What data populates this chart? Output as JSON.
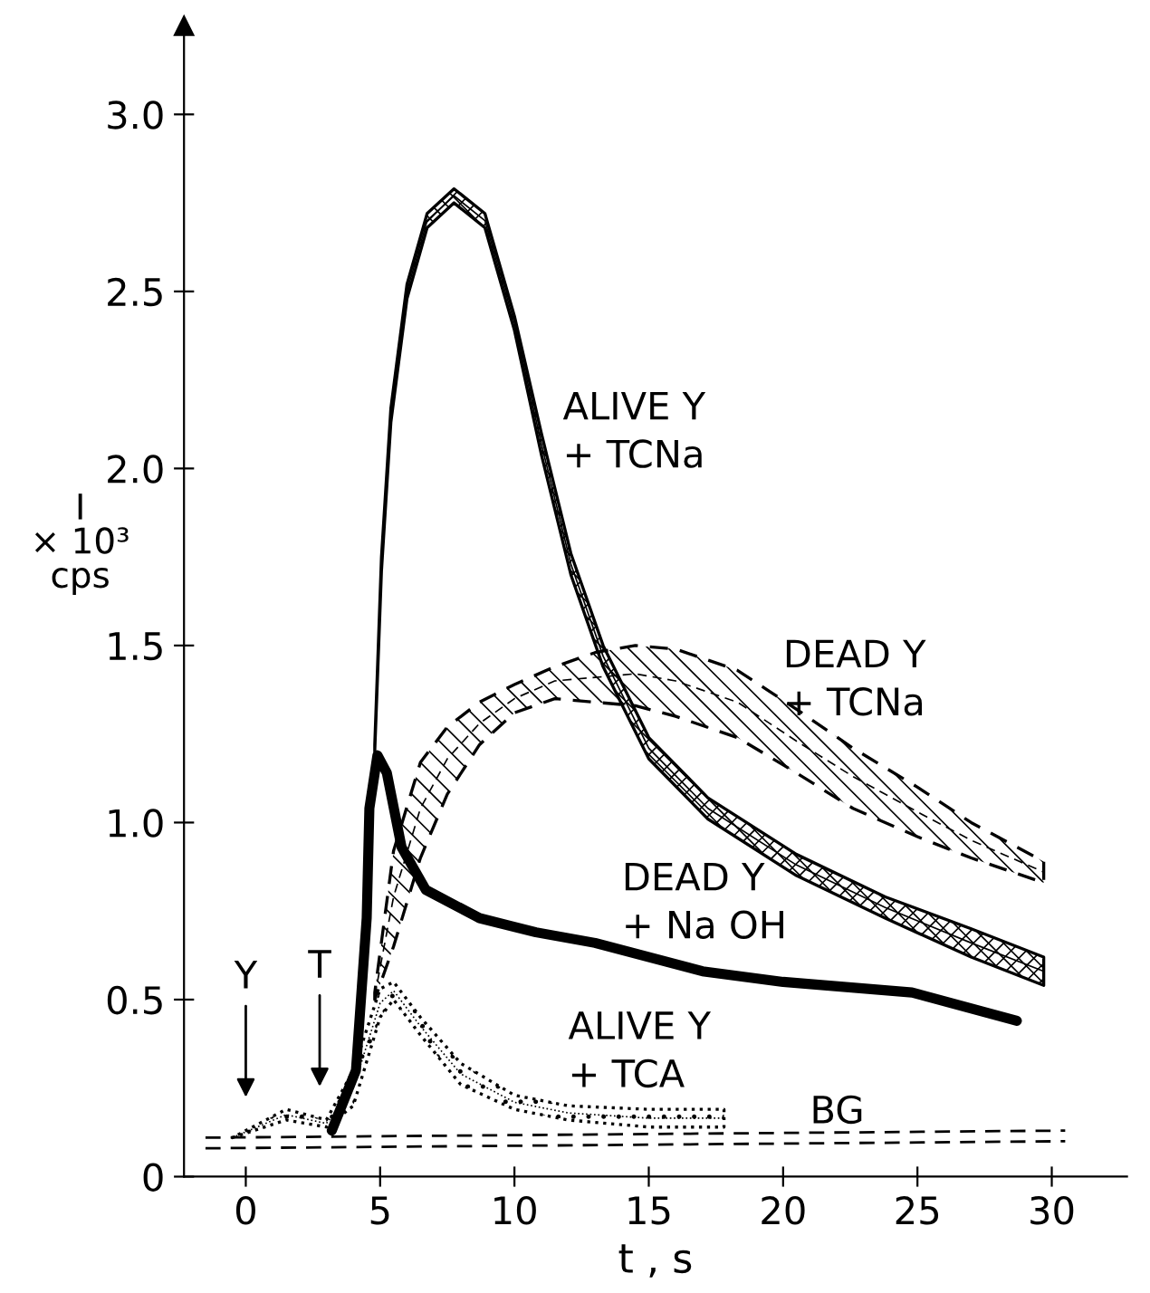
{
  "chart_data": {
    "type": "line",
    "xlabel": "t , s",
    "ylabel": "I\n× 10³\ncps",
    "xlim": [
      -2.3,
      32.8
    ],
    "ylim": [
      0,
      3.25
    ],
    "xticks": [
      0,
      5,
      10,
      15,
      20,
      25,
      30
    ],
    "yticks": [
      0,
      {
        "value": 0.5,
        "label": "0.5"
      },
      {
        "value": 1,
        "label": "1.0"
      },
      {
        "value": 1.5,
        "label": "1.5"
      },
      {
        "value": 2,
        "label": "2.0"
      },
      {
        "value": 2.5,
        "label": "2.5"
      },
      {
        "value": 3,
        "label": "3.0"
      }
    ],
    "grid": false,
    "legend": false,
    "series": [
      {
        "name": "ALIVE Y\n+ TCNa",
        "color": "#000000",
        "line_style": "solid",
        "x": [
          4.8,
          5.05,
          5.4,
          6.0,
          6.75,
          7.75,
          8.9,
          10.0,
          11.0,
          12.1,
          13.3,
          15.0,
          17.2,
          20.5,
          23.8,
          27.0,
          29.7
        ],
        "values": [
          1.21,
          1.73,
          2.15,
          2.5,
          2.7,
          2.77,
          2.7,
          2.41,
          2.07,
          1.73,
          1.47,
          1.21,
          1.04,
          0.88,
          0.76,
          0.66,
          0.58
        ],
        "lower": [
          1.2,
          1.71,
          2.13,
          2.48,
          2.68,
          2.75,
          2.68,
          2.39,
          2.04,
          1.7,
          1.44,
          1.18,
          1.01,
          0.85,
          0.73,
          0.62,
          0.54
        ],
        "upper": [
          1.22,
          1.75,
          2.17,
          2.52,
          2.72,
          2.79,
          2.72,
          2.43,
          2.1,
          1.76,
          1.5,
          1.24,
          1.07,
          0.91,
          0.79,
          0.7,
          0.62
        ]
      },
      {
        "name": "DEAD Y\n+ TCNa",
        "color": "#000000",
        "line_style": "dashed",
        "x": [
          4.8,
          5.5,
          6.5,
          7.5,
          8.7,
          10,
          11.5,
          13,
          14.5,
          16,
          18.3,
          20.5,
          22.6,
          25,
          27,
          29.7
        ],
        "values": [
          0.51,
          0.79,
          1.04,
          1.18,
          1.28,
          1.35,
          1.4,
          1.41,
          1.42,
          1.4,
          1.34,
          1.23,
          1.13,
          1.03,
          0.95,
          0.86
        ],
        "lower": [
          0.5,
          0.65,
          0.9,
          1.08,
          1.22,
          1.31,
          1.35,
          1.34,
          1.33,
          1.3,
          1.24,
          1.14,
          1.04,
          0.96,
          0.9,
          0.83
        ],
        "upper": [
          0.52,
          0.92,
          1.17,
          1.27,
          1.34,
          1.39,
          1.44,
          1.48,
          1.5,
          1.49,
          1.43,
          1.32,
          1.21,
          1.1,
          1.0,
          0.89
        ]
      },
      {
        "name": "DEAD Y\n+ Na OH",
        "color": "#000000",
        "line_style": "solid",
        "x": [
          3.2,
          4.1,
          4.5,
          4.6,
          4.9,
          5.25,
          5.8,
          6.7,
          8.7,
          10.8,
          13.0,
          17.0,
          20.0,
          24.8,
          28.7
        ],
        "values": [
          0.13,
          0.3,
          0.73,
          1.04,
          1.19,
          1.14,
          0.93,
          0.81,
          0.73,
          0.69,
          0.66,
          0.58,
          0.55,
          0.52,
          0.44
        ]
      },
      {
        "name": "ALIVE Y\n+ TCA",
        "color": "#000000",
        "line_style": "dotted",
        "x": [
          -0.5,
          1.5,
          3,
          4,
          5,
          5.5,
          6.5,
          8,
          10,
          12,
          15,
          17.8
        ],
        "values": [
          0.11,
          0.175,
          0.15,
          0.25,
          0.49,
          0.525,
          0.425,
          0.29,
          0.21,
          0.18,
          0.165,
          0.165
        ],
        "lower": [
          0.11,
          0.16,
          0.14,
          0.2,
          0.45,
          0.5,
          0.4,
          0.26,
          0.19,
          0.16,
          0.14,
          0.14
        ],
        "upper": [
          0.11,
          0.19,
          0.16,
          0.3,
          0.53,
          0.55,
          0.45,
          0.32,
          0.23,
          0.2,
          0.19,
          0.19
        ]
      },
      {
        "name": "BG",
        "color": "#000000",
        "line_style": "dashed",
        "x": [
          -1.5,
          30.5
        ],
        "values": [
          0.11,
          0.13
        ]
      },
      {
        "color": "#000000",
        "line_style": "dashed",
        "x": [
          -1.5,
          30.5
        ],
        "values": [
          0.08,
          0.1
        ]
      }
    ],
    "annotations": [
      "Y",
      "T"
    ]
  }
}
